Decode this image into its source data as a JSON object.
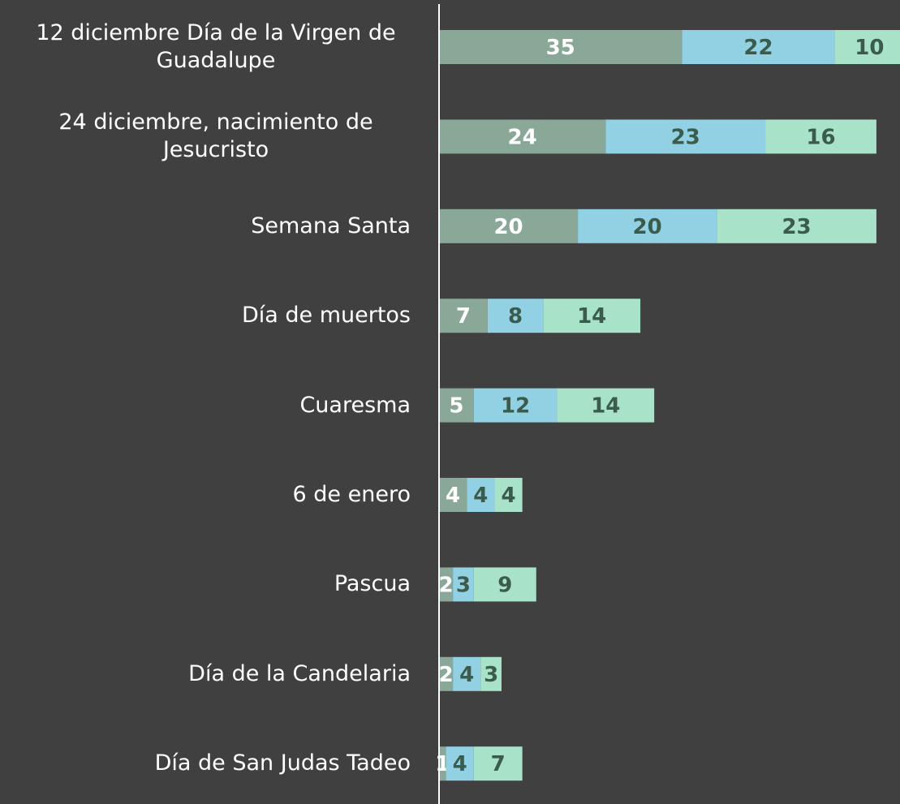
{
  "chart_data": {
    "type": "stacked_bar_horizontal",
    "categories": [
      "12 diciembre Día de la Virgen de Guadalupe",
      "24 diciembre, nacimiento de Jesucristo",
      "Semana Santa",
      "Día de muertos",
      "Cuaresma",
      "6 de enero",
      "Pascua",
      "Día de la Candelaria",
      "Día de San Judas Tadeo"
    ],
    "series": [
      {
        "color": "#8aa898",
        "label_color": "#ffffff",
        "values": [
          35,
          24,
          20,
          7,
          5,
          4,
          2,
          2,
          1
        ]
      },
      {
        "color": "#92d0e3",
        "label_color": "#3b5b4c",
        "values": [
          22,
          23,
          20,
          8,
          12,
          4,
          3,
          4,
          4
        ]
      },
      {
        "color": "#a8e2c8",
        "label_color": "#3b5b4c",
        "values": [
          10,
          16,
          23,
          14,
          14,
          4,
          9,
          3,
          7
        ]
      }
    ],
    "xlim": [
      0,
      66.4
    ]
  }
}
